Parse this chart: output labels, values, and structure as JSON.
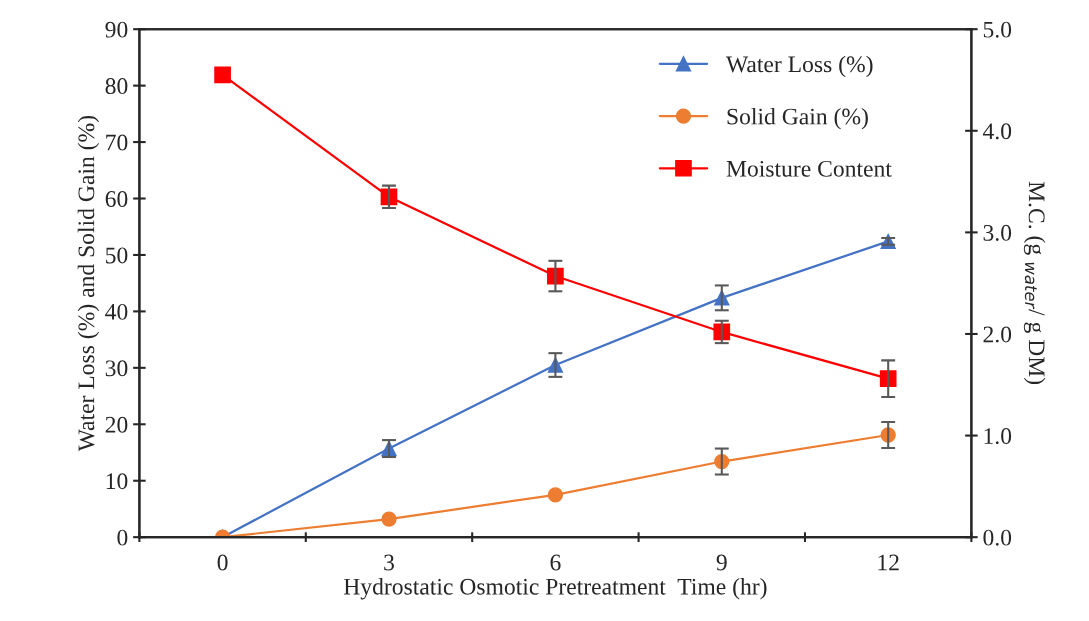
{
  "chart_data": {
    "type": "line",
    "xlabel": "Hydrostatic Osmotic Pretreatment  Time (hr)",
    "ylabel": "Water Loss (%) and Solid Gain (%)",
    "y2label": "M.C. (g $_{water}$/ g DM)",
    "categories": [
      "0",
      "3",
      "6",
      "9",
      "12"
    ],
    "ylim": [
      0,
      90
    ],
    "yticks": [
      0,
      10,
      20,
      30,
      40,
      50,
      60,
      70,
      80,
      90
    ],
    "y2lim": [
      0,
      5
    ],
    "y2ticks": [
      {
        "value": 0,
        "label": "0.0"
      },
      {
        "value": 1,
        "label": "1.0"
      },
      {
        "value": 2,
        "label": "2.0"
      },
      {
        "value": 3,
        "label": "3.0"
      },
      {
        "value": 4,
        "label": "4.0"
      },
      {
        "value": 5,
        "label": "5.0"
      }
    ],
    "grid": false,
    "legend": "top right",
    "series": [
      {
        "name": "Water Loss (%)",
        "color": "#4472c4",
        "marker": "triangle",
        "values": [
          0,
          15.7,
          30.5,
          42.4,
          52.4
        ],
        "errors": [
          null,
          1.5,
          2.1,
          2.2,
          0.6
        ]
      },
      {
        "name": "Solid Gain (%)",
        "color": "#ed7d31",
        "marker": "circle",
        "values": [
          0,
          3.2,
          7.5,
          13.4,
          18.1
        ],
        "errors": [
          null,
          null,
          null,
          2.3,
          2.3
        ]
      },
      {
        "name": "Moisture Content",
        "color": "#ff0000",
        "marker": "square",
        "axis": "y2",
        "values": [
          4.55,
          3.35,
          2.57,
          2.02,
          1.56
        ],
        "errors": [
          null,
          0.11,
          0.15,
          0.11,
          0.18
        ]
      }
    ]
  }
}
